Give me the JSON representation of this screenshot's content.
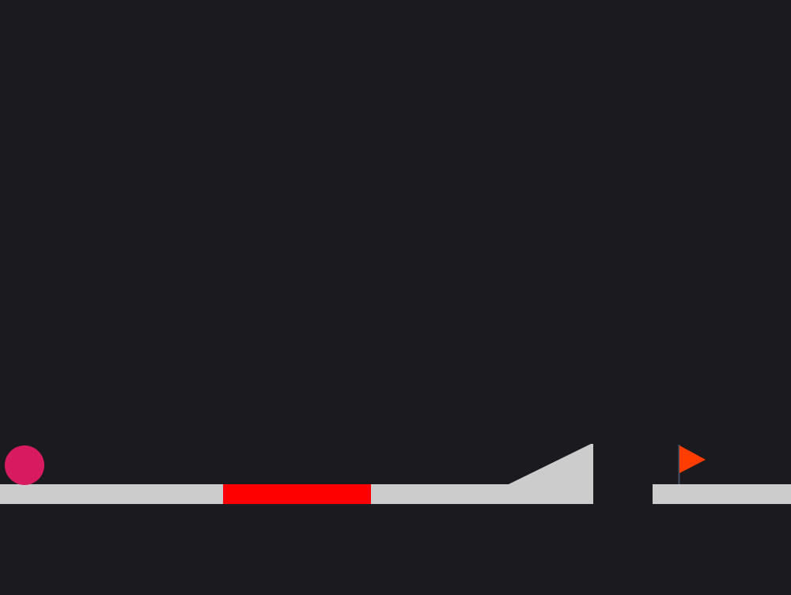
{
  "colors": {
    "background": "#1b1a1f",
    "ground": "#cccccc",
    "hazard": "#ff0000",
    "ramp": "#cccccc",
    "player": "#d81b60",
    "flag": "#ff3d00",
    "flagpole": "#44505f"
  },
  "scene": {
    "player": {
      "shape": "circle",
      "role": "player-ball"
    },
    "ground": [
      {
        "role": "platform",
        "kind": "solid"
      },
      {
        "role": "platform",
        "kind": "solid"
      },
      {
        "role": "platform",
        "kind": "solid"
      }
    ],
    "hazard": {
      "role": "lava-strip",
      "kind": "deadly"
    },
    "ramp": {
      "role": "jump-ramp",
      "kind": "slope"
    },
    "goal": {
      "role": "finish-flag",
      "icon": "flag-icon"
    }
  }
}
